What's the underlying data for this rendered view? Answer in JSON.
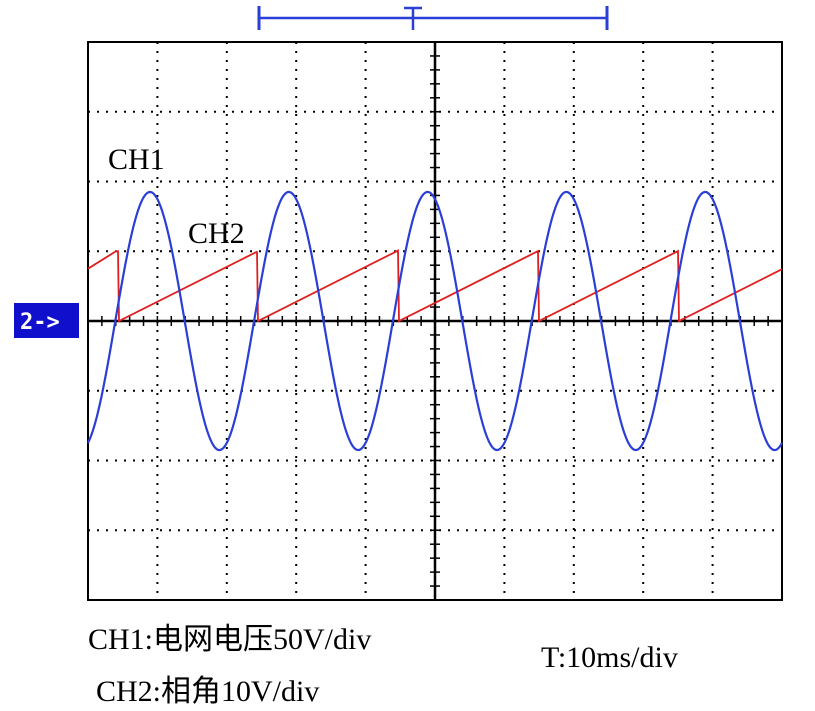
{
  "trace_labels": {
    "ch1": "CH1",
    "ch2": "CH2"
  },
  "marker": {
    "label": "2->"
  },
  "captions": {
    "ch1": "CH1:电网电压50V/div",
    "ch2": "CH2:相角10V/div",
    "timebase": "T:10ms/div"
  },
  "colors": {
    "ch1": "#2a3fd6",
    "ch2": "#e02020",
    "grid": "#000000",
    "marker_bg": "#1010cc",
    "marker_text": "#ffffff",
    "trigger": "#2a3fd6"
  },
  "chart_data": {
    "type": "line",
    "grid": true,
    "x_divisions": 10,
    "y_divisions": 8,
    "timebase_ms_per_div": 10,
    "series": [
      {
        "name": "CH1",
        "unit_per_div": "50V",
        "shape": "sine",
        "amplitude_div": 1.85,
        "period_div": 2.0,
        "x_start_div": 0,
        "x_end_div": 10
      },
      {
        "name": "CH2",
        "unit_per_div": "10V",
        "shape": "sawtooth",
        "peak_div": 1.0,
        "start_level_div": 0.75,
        "period_div": 2.0,
        "x_start_div": 0,
        "x_end_div": 10
      }
    ]
  }
}
